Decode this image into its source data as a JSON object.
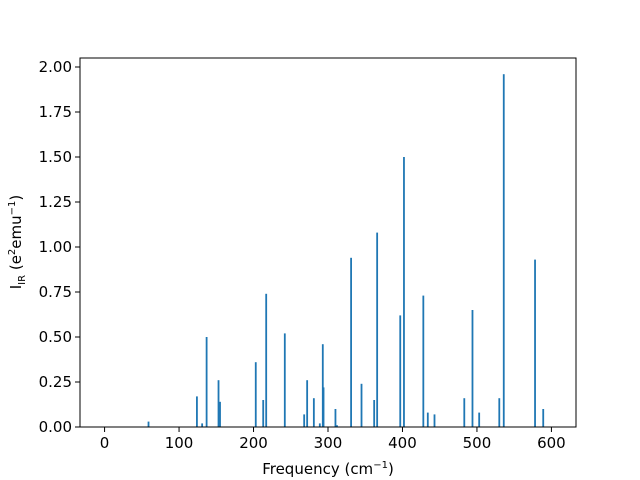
{
  "chart_data": {
    "type": "bar",
    "title": "",
    "xlabel": {
      "base": "Frequency (cm",
      "sup": "−1",
      "tail": ")"
    },
    "ylabel": {
      "base": "I",
      "sub": "IR",
      "mid": " (e",
      "sup1": "2",
      "mid2": "emu",
      "sup2": "−1",
      "tail": ")"
    },
    "xlim": [
      -33,
      633
    ],
    "ylim": [
      0,
      2.05
    ],
    "xticks": [
      0,
      100,
      200,
      300,
      400,
      500,
      600
    ],
    "xtick_labels": [
      "0",
      "100",
      "200",
      "300",
      "400",
      "500",
      "600"
    ],
    "yticks": [
      0,
      0.25,
      0.5,
      0.75,
      1.0,
      1.25,
      1.5,
      1.75,
      2.0
    ],
    "ytick_labels": [
      "0.00",
      "0.25",
      "0.50",
      "0.75",
      "1.00",
      "1.25",
      "1.50",
      "1.75",
      "2.00"
    ],
    "grid": false,
    "bar_color": "#1f77b4",
    "x": [
      59,
      124,
      131,
      137,
      153,
      155,
      203,
      213,
      217,
      242,
      268,
      272,
      281,
      289,
      293,
      294,
      310,
      312,
      331,
      345,
      362,
      366,
      397,
      402,
      428,
      434,
      443,
      483,
      494,
      503,
      530,
      536,
      578,
      589
    ],
    "values": [
      0.03,
      0.17,
      0.02,
      0.5,
      0.26,
      0.14,
      0.36,
      0.15,
      0.74,
      0.52,
      0.07,
      0.26,
      0.16,
      0.02,
      0.46,
      0.22,
      0.1,
      0.01,
      0.94,
      0.24,
      0.15,
      1.08,
      0.62,
      1.5,
      0.73,
      0.08,
      0.07,
      0.16,
      0.65,
      0.08,
      0.16,
      1.96,
      0.93,
      0.1
    ]
  }
}
